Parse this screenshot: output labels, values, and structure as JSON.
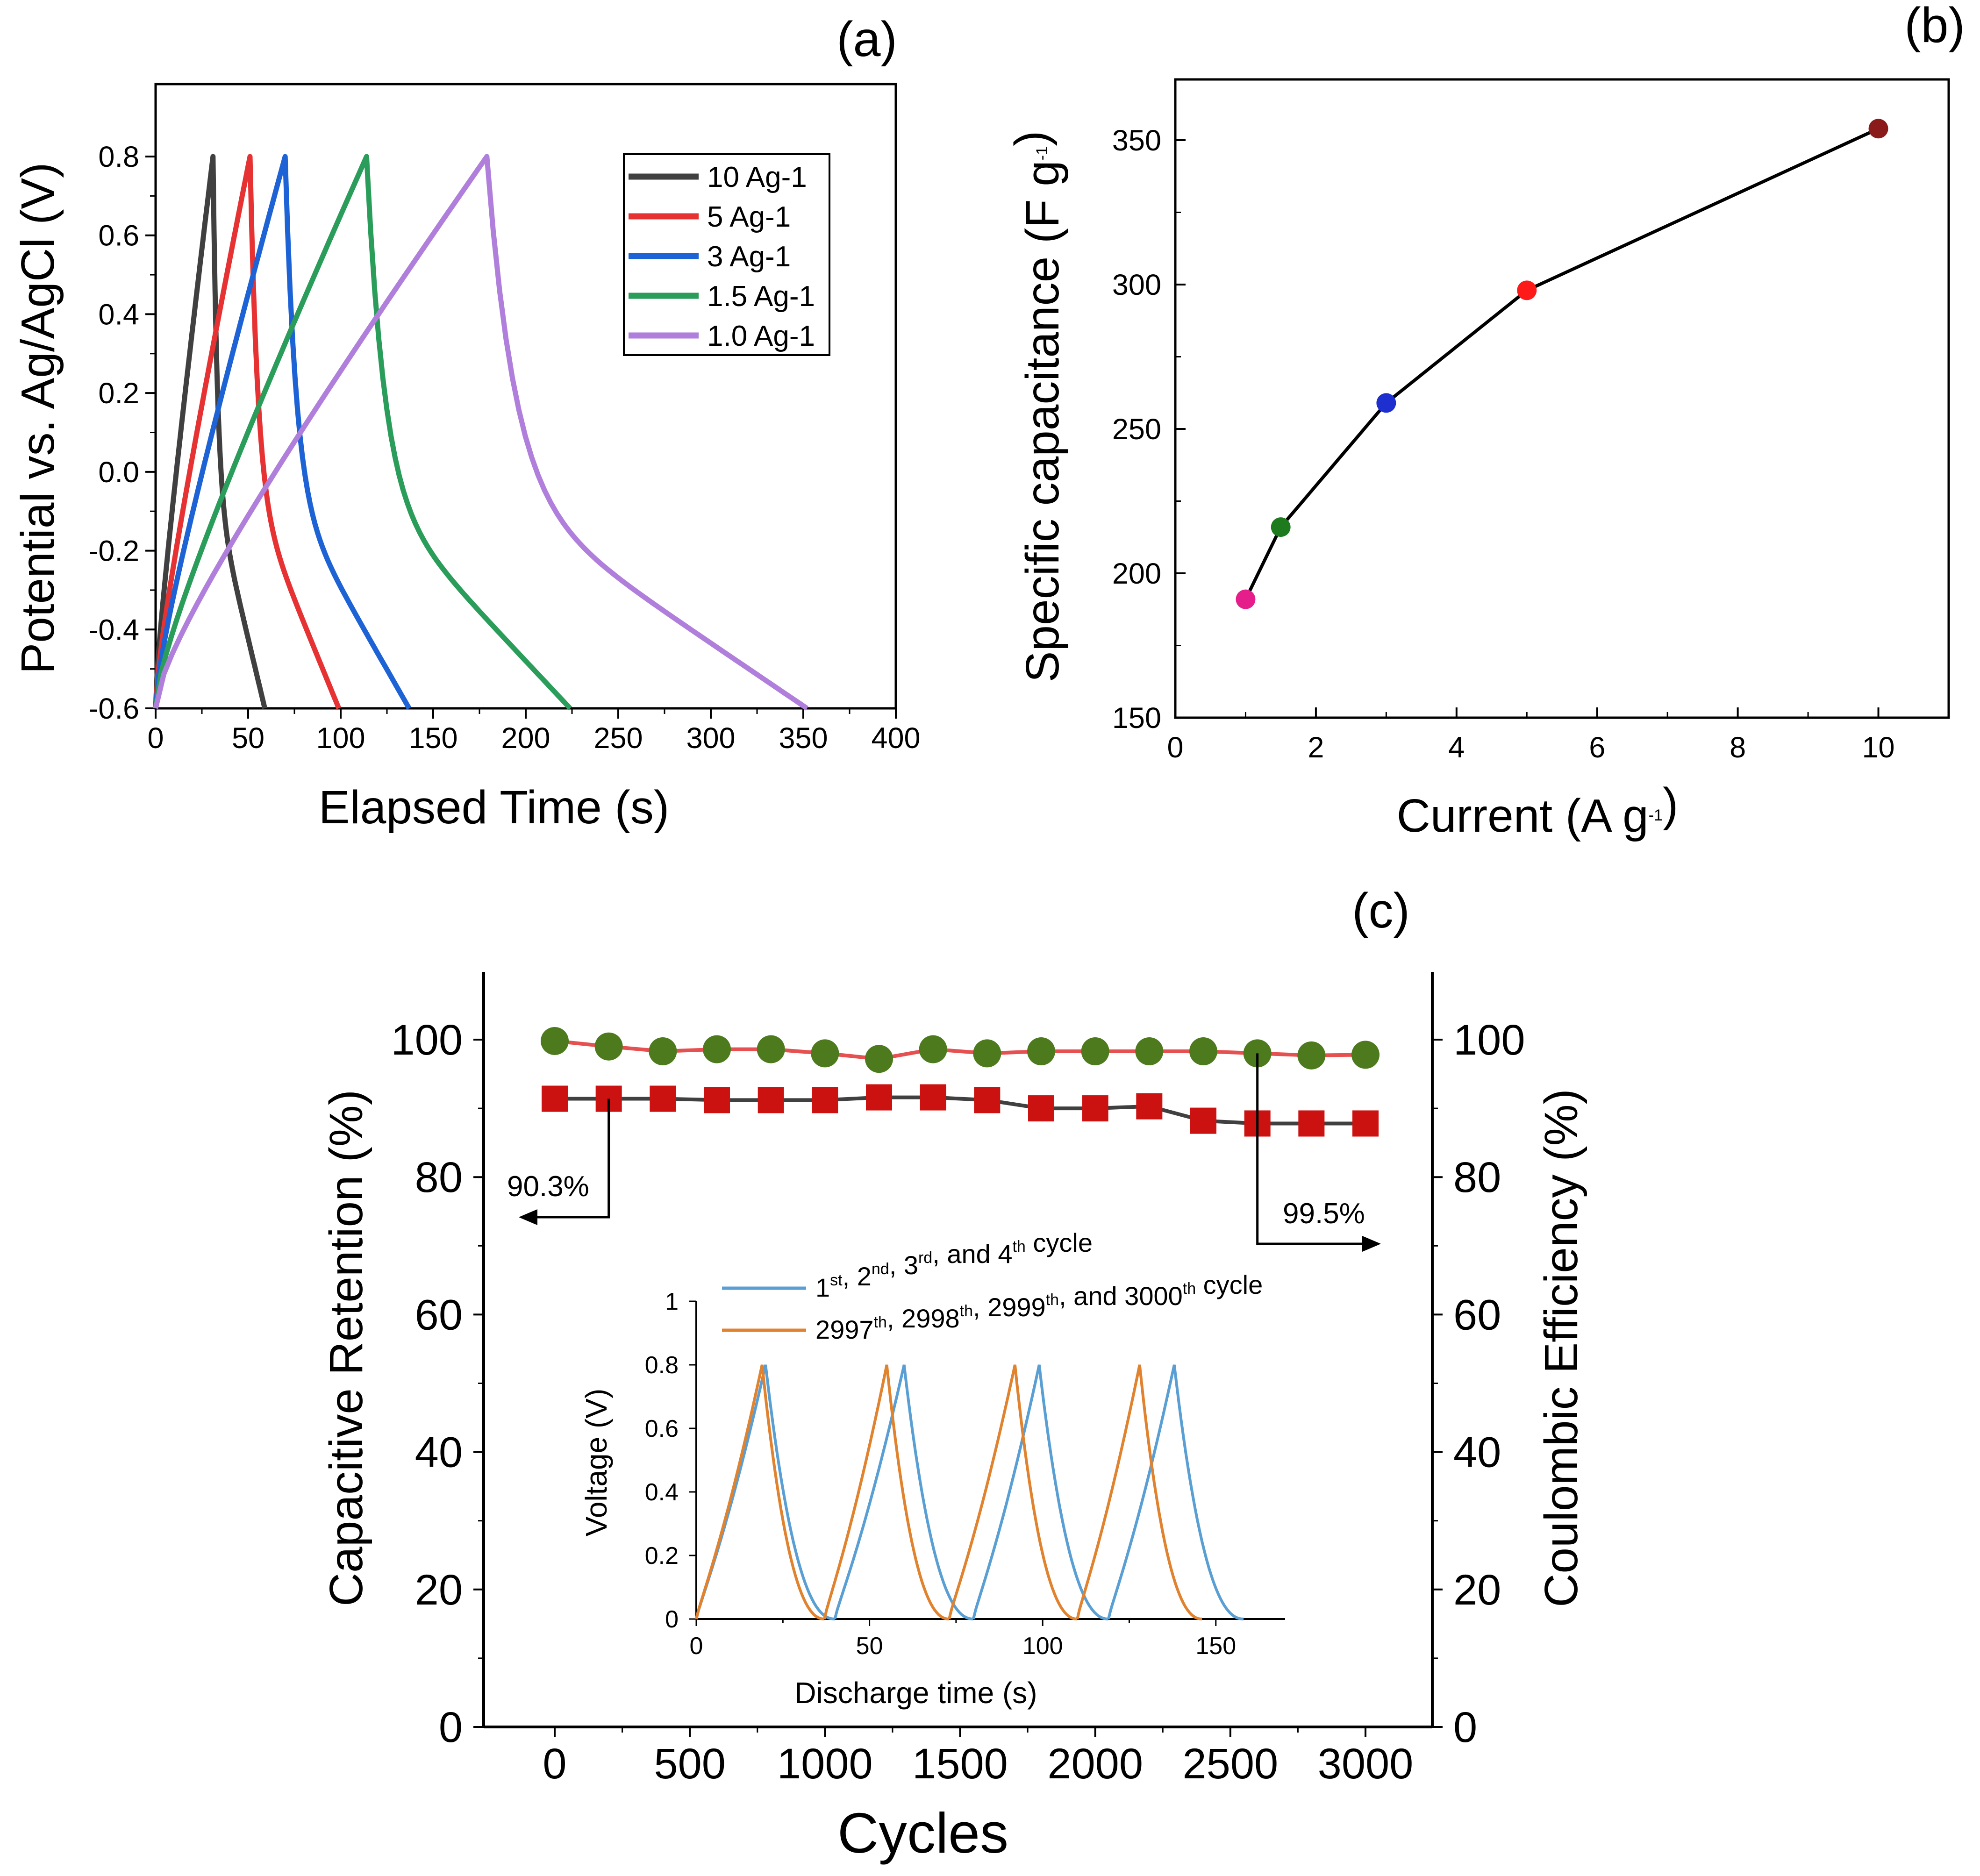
{
  "colors": {
    "black": "#000000",
    "legend_10": "#404040",
    "legend_5": "#e63232",
    "legend_3": "#1e63d6",
    "legend_15": "#2b9d5a",
    "legend_1": "#b07fdc",
    "b_pink": "#e61e8c",
    "b_green": "#1d7a1d",
    "b_blue": "#1e2fd0",
    "b_red": "#ff1a1a",
    "b_maroon": "#8b1a1a",
    "c_circle": "#4d7a1d",
    "c_circle_line": "#e65050",
    "c_square": "#cc1111",
    "c_square_line": "#404040",
    "inset_blue": "#5a9fd4",
    "inset_orange": "#e0822e"
  },
  "chart_data": [
    {
      "id": "a",
      "type": "line",
      "panel_label": "(a)",
      "xlabel": "Elapsed Time (s)",
      "ylabel": "Potential vs. Ag/AgCl (V)",
      "xlim": [
        0,
        400
      ],
      "ylim": [
        -0.6,
        0.9
      ],
      "xticks": [
        "0",
        "50",
        "100",
        "150",
        "200",
        "250",
        "300",
        "350",
        "400"
      ],
      "xtick_values": [
        0,
        50,
        100,
        150,
        200,
        250,
        300,
        350,
        400
      ],
      "yticks": [
        "-0.6",
        "-0.4",
        "-0.2",
        "0.0",
        "0.2",
        "0.4",
        "0.6",
        "0.8"
      ],
      "ytick_values": [
        -0.6,
        -0.4,
        -0.2,
        0.0,
        0.2,
        0.4,
        0.6,
        0.8
      ],
      "legend_position": "top-right",
      "series": [
        {
          "name": "10 Ag-1",
          "color_key": "legend_10",
          "charge_end": 31,
          "discharge_end": 59
        },
        {
          "name": "5 Ag-1",
          "color_key": "legend_5",
          "charge_end": 51,
          "discharge_end": 99
        },
        {
          "name": "3 Ag-1",
          "color_key": "legend_3",
          "charge_end": 70,
          "discharge_end": 137
        },
        {
          "name": "1.5 Ag-1",
          "color_key": "legend_15",
          "charge_end": 114,
          "discharge_end": 224
        },
        {
          "name": "1.0 Ag-1",
          "color_key": "legend_1",
          "charge_end": 179,
          "discharge_end": 352
        }
      ]
    },
    {
      "id": "b",
      "type": "scatter",
      "panel_label": "(b)",
      "xlabel": "Current (A g",
      "xlabel_sup": "-1",
      "xlabel_end": ")",
      "ylabel": "Specific capacitance (F g",
      "ylabel_sup": "-1",
      "ylabel_end": ")",
      "xlim": [
        0,
        11
      ],
      "ylim": [
        150,
        370
      ],
      "xticks": [
        "0",
        "2",
        "4",
        "6",
        "8",
        "10"
      ],
      "xtick_values": [
        0,
        2,
        4,
        6,
        8,
        10
      ],
      "yticks": [
        "150",
        "200",
        "250",
        "300",
        "350"
      ],
      "ytick_values": [
        150,
        200,
        250,
        300,
        350
      ],
      "points": [
        {
          "x": 1.0,
          "y": 191,
          "color_key": "b_pink"
        },
        {
          "x": 1.5,
          "y": 216,
          "color_key": "b_green"
        },
        {
          "x": 3.0,
          "y": 259,
          "color_key": "b_blue"
        },
        {
          "x": 5.0,
          "y": 298,
          "color_key": "b_red"
        },
        {
          "x": 10.0,
          "y": 354,
          "color_key": "b_maroon"
        }
      ]
    },
    {
      "id": "c",
      "type": "scatter",
      "panel_label": "(c)",
      "xlabel": "Cycles",
      "ylabel": "Capacitive Retention (%)",
      "ylabel_right": "Coulombic Efficiency (%)",
      "xlim": [
        -250,
        3200
      ],
      "ylim": [
        0,
        110
      ],
      "xticks": [
        "0",
        "500",
        "1000",
        "1500",
        "2000",
        "2500",
        "3000"
      ],
      "xtick_values": [
        0,
        500,
        1000,
        1500,
        2000,
        2500,
        3000
      ],
      "yticks": [
        "0",
        "20",
        "40",
        "60",
        "80",
        "100"
      ],
      "ytick_values": [
        0,
        20,
        40,
        60,
        80,
        100
      ],
      "x": [
        0,
        200,
        400,
        600,
        800,
        1000,
        1200,
        1400,
        1600,
        1800,
        2000,
        2200,
        2400,
        2600,
        2800,
        3000
      ],
      "series": [
        {
          "name": "Coulombic efficiency",
          "marker": "circle",
          "values": [
            99.8,
            99.0,
            98.3,
            98.6,
            98.6,
            98.0,
            97.2,
            98.6,
            98.0,
            98.3,
            98.3,
            98.3,
            98.3,
            98.0,
            97.7,
            97.8
          ]
        },
        {
          "name": "Capacitive retention",
          "marker": "square",
          "values": [
            91.4,
            91.4,
            91.4,
            91.2,
            91.2,
            91.2,
            91.6,
            91.6,
            91.2,
            90.0,
            90.0,
            90.3,
            88.2,
            87.8,
            87.8,
            87.8
          ]
        }
      ],
      "annotations": [
        {
          "text": "90.3%",
          "arrow": "left"
        },
        {
          "text": "99.5%",
          "arrow": "right"
        }
      ]
    },
    {
      "id": "c-inset",
      "type": "line",
      "xlabel": "Discharge time (s)",
      "ylabel": "Voltage (V)",
      "xlim": [
        0,
        170
      ],
      "ylim": [
        0,
        1
      ],
      "xticks": [
        "0",
        "50",
        "100",
        "150"
      ],
      "xtick_values": [
        0,
        50,
        100,
        150
      ],
      "yticks": [
        "0",
        "0.2",
        "0.4",
        "0.6",
        "0.8",
        "1"
      ],
      "ytick_values": [
        0,
        0.2,
        0.4,
        0.6,
        0.8,
        1.0
      ],
      "legend": [
        {
          "parts": [
            [
              "1",
              "st"
            ],
            [
              ", 2",
              "nd"
            ],
            [
              ", 3",
              "rd"
            ],
            [
              ", and 4",
              "th"
            ],
            [
              " cycle",
              ""
            ]
          ],
          "color_key": "inset_blue"
        },
        {
          "parts": [
            [
              "2997",
              "th"
            ],
            [
              ", 2998",
              "th"
            ],
            [
              ", 2999",
              "th"
            ],
            [
              ", and 3000",
              "th"
            ],
            [
              " cycle",
              ""
            ]
          ],
          "color_key": "inset_orange"
        }
      ],
      "series": [
        {
          "name": "1st, 2nd, 3rd, and 4th cycle",
          "color_key": "inset_blue",
          "cycles": [
            [
              0,
              20,
              40
            ],
            [
              40,
              60,
              80
            ],
            [
              80,
              99,
              119
            ],
            [
              119,
              138,
              158
            ]
          ]
        },
        {
          "name": "2997th, 2998th, 2999th, and 3000th cycle",
          "color_key": "inset_orange",
          "cycles": [
            [
              0,
              19,
              37
            ],
            [
              37,
              55,
              73
            ],
            [
              73,
              92,
              110
            ],
            [
              110,
              128,
              146
            ]
          ]
        }
      ],
      "peak_voltage": 0.8
    }
  ]
}
